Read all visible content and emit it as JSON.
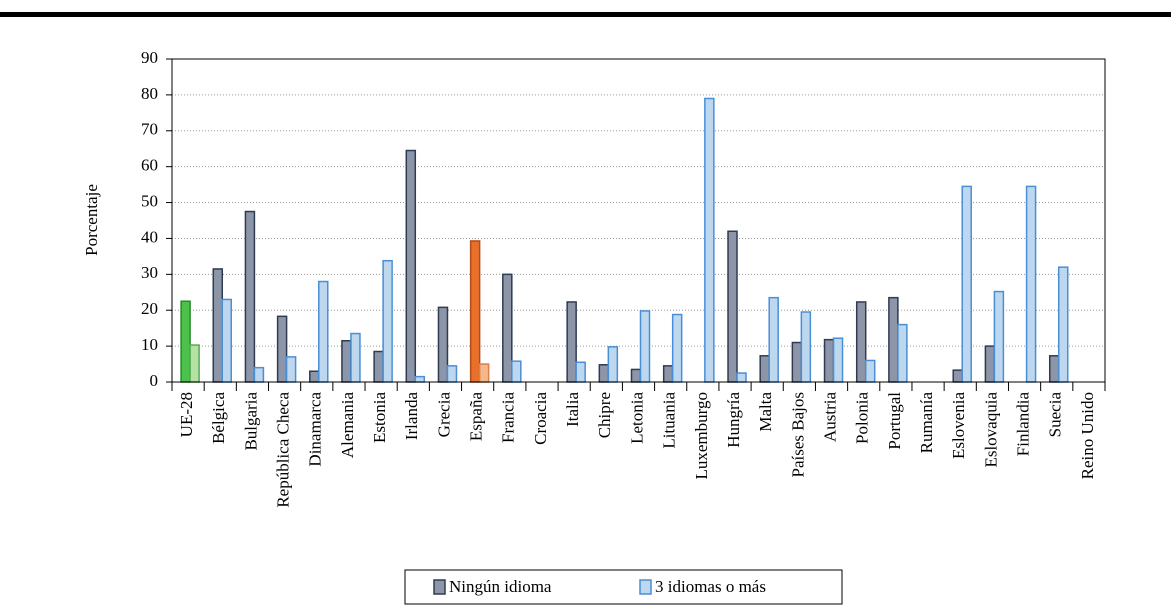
{
  "chart_data": {
    "type": "bar",
    "y_label": "Porcentaje",
    "categories": [
      "UE-28",
      "Bélgica",
      "Bulgaria",
      "República Checa",
      "Dinamarca",
      "Alemania",
      "Estonia",
      "Irlanda",
      "Grecia",
      "España",
      "Francia",
      "Croacia",
      "Italia",
      "Chipre",
      "Letonia",
      "Lituania",
      "Luxemburgo",
      "Hungría",
      "Malta",
      "Países Bajos",
      "Austria",
      "Polonia",
      "Portugal",
      "Rumanía",
      "Eslovenia",
      "Eslovaquia",
      "Finlandia",
      "Suecia",
      "Reino Unido"
    ],
    "series": [
      {
        "name": "Ningún idioma",
        "color": "#8d96a8",
        "stroke": "#2f3b52",
        "values": [
          22.5,
          31.5,
          47.5,
          18.3,
          3,
          11.5,
          8.5,
          64.5,
          20.8,
          39.3,
          30,
          null,
          22.3,
          4.8,
          3.5,
          4.5,
          null,
          42,
          7.3,
          11,
          11.8,
          22.3,
          23.5,
          null,
          3.3,
          10,
          null,
          7.3,
          null
        ]
      },
      {
        "name": "3 idiomas o más",
        "color": "#bdd7ee",
        "stroke": "#4a8fd6",
        "values": [
          10.3,
          23,
          4,
          7,
          28,
          13.5,
          33.8,
          1.5,
          4.5,
          5,
          5.8,
          null,
          5.5,
          9.8,
          19.8,
          18.8,
          79,
          2.5,
          23.5,
          19.5,
          12.2,
          6,
          16,
          null,
          54.5,
          25.2,
          54.5,
          32,
          null
        ]
      }
    ],
    "highlights": [
      {
        "category": "UE-28",
        "colors": [
          "#4cc24c",
          "#b5e2a2"
        ],
        "strokes": [
          "#2a8a2a",
          "#5aa85a"
        ]
      },
      {
        "category": "España",
        "colors": [
          "#e8702a",
          "#f6b88a"
        ],
        "strokes": [
          "#b04e1a",
          "#d9804a"
        ]
      }
    ],
    "ylim": [
      0,
      90
    ],
    "yticks": [
      0,
      10,
      20,
      30,
      40,
      50,
      60,
      70,
      80,
      90
    ],
    "grid": true,
    "legend": "bottom"
  }
}
